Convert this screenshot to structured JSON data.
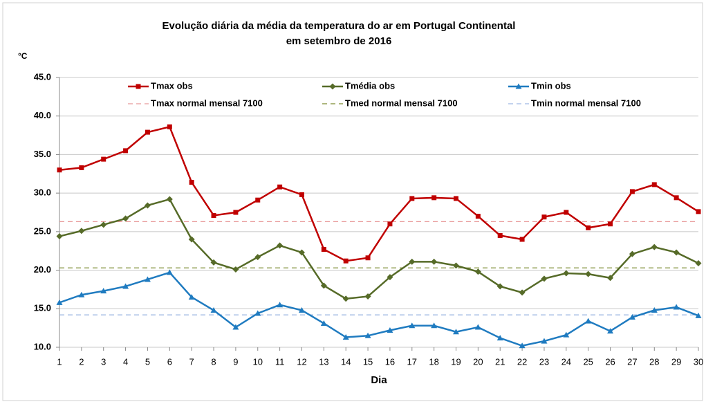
{
  "chart_data": {
    "type": "line",
    "title_lines": [
      "Evolução diária da média da temperatura do ar em Portugal Continental",
      "em setembro de 2016"
    ],
    "y_label": "°C",
    "x_label": "Dia",
    "x": [
      1,
      2,
      3,
      4,
      5,
      6,
      7,
      8,
      9,
      10,
      11,
      12,
      13,
      14,
      15,
      16,
      17,
      18,
      19,
      20,
      21,
      22,
      23,
      24,
      25,
      26,
      27,
      28,
      29,
      30
    ],
    "xlim": [
      1,
      30
    ],
    "ylim": [
      10,
      45
    ],
    "yticks": [
      {
        "value": 10,
        "label": "10.0"
      },
      {
        "value": 15,
        "label": "15.0"
      },
      {
        "value": 20,
        "label": "20.0"
      },
      {
        "value": 25,
        "label": "25.0"
      },
      {
        "value": 30,
        "label": "30.0"
      },
      {
        "value": 35,
        "label": "35.0"
      },
      {
        "value": 40,
        "label": "40.0"
      },
      {
        "value": 45,
        "label": "45.0"
      }
    ],
    "grid": true,
    "series": [
      {
        "name": "Tmax obs",
        "color": "#c00000",
        "marker": "square",
        "values": [
          33.0,
          33.3,
          34.4,
          35.5,
          37.9,
          38.6,
          31.4,
          27.1,
          27.5,
          29.1,
          30.8,
          29.8,
          22.7,
          21.2,
          21.6,
          26.0,
          29.3,
          29.4,
          29.3,
          27.0,
          24.5,
          24.0,
          26.9,
          27.5,
          25.5,
          26.0,
          30.2,
          31.1,
          29.4,
          27.6
        ]
      },
      {
        "name": "Tmédia obs",
        "color": "#566b28",
        "marker": "diamond",
        "values": [
          24.4,
          25.1,
          25.9,
          26.7,
          28.4,
          29.2,
          24.0,
          21.0,
          20.1,
          21.7,
          23.2,
          22.3,
          18.0,
          16.3,
          16.6,
          19.1,
          21.1,
          21.1,
          20.6,
          19.8,
          17.9,
          17.1,
          18.9,
          19.6,
          19.5,
          19.0,
          22.1,
          23.0,
          22.3,
          20.9
        ]
      },
      {
        "name": "Tmin obs",
        "color": "#1f7bc0",
        "marker": "triangle",
        "values": [
          15.8,
          16.8,
          17.3,
          17.9,
          18.8,
          19.7,
          16.5,
          14.8,
          12.6,
          14.4,
          15.5,
          14.8,
          13.1,
          11.3,
          11.5,
          12.2,
          12.8,
          12.8,
          12.0,
          12.6,
          11.2,
          10.2,
          10.8,
          11.6,
          13.4,
          12.1,
          13.9,
          14.8,
          15.2,
          14.1
        ]
      }
    ],
    "reference_lines": [
      {
        "name": "Tmax normal mensal 7100",
        "color": "#e8999a",
        "value": 26.3
      },
      {
        "name": "Tmed normal mensal 7100",
        "color": "#7c8c32",
        "value": 20.3
      },
      {
        "name": "Tmin normal mensal 7100",
        "color": "#9fb8e3",
        "value": 14.2
      }
    ]
  }
}
